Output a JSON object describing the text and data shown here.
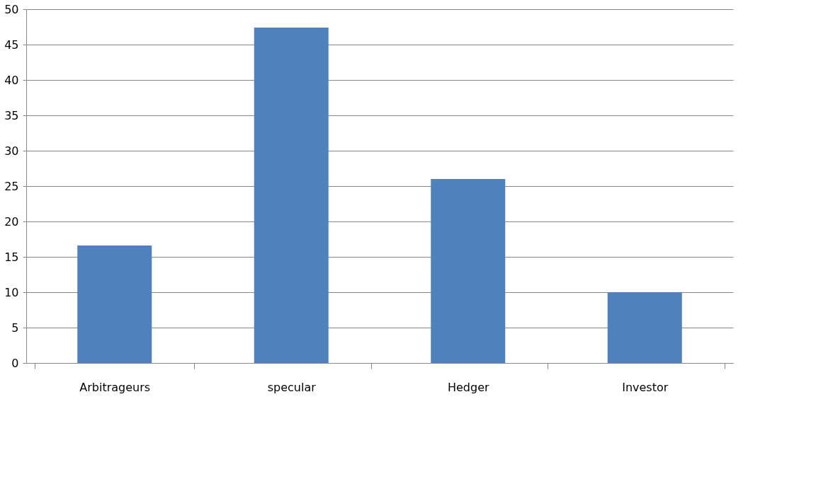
{
  "chart_data": {
    "type": "bar",
    "categories": [
      "Arbitrageurs",
      "specular",
      "Hedger",
      "Investor"
    ],
    "values": [
      16.6,
      47.4,
      26,
      10
    ],
    "color": "#4f81bd",
    "ylim": [
      0,
      50
    ],
    "yticks": [
      0,
      5,
      10,
      15,
      20,
      25,
      30,
      35,
      40,
      45,
      50
    ],
    "grid": "y"
  }
}
